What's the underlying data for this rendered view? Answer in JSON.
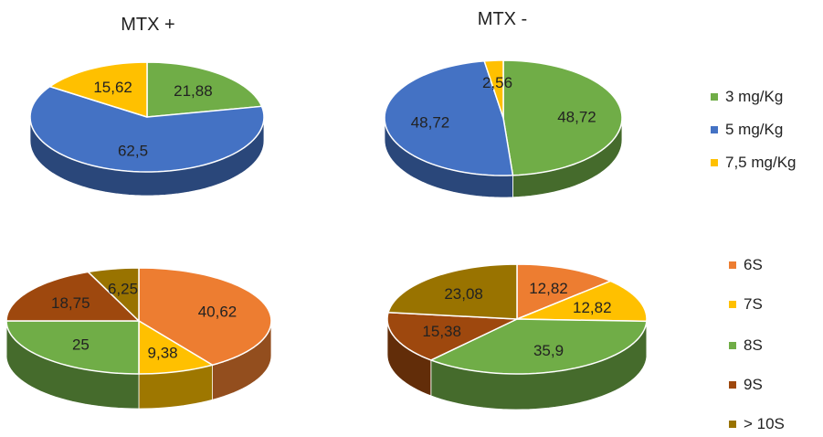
{
  "column_titles": [
    "MTX +",
    "MTX -"
  ],
  "legends": [
    {
      "entries": [
        {
          "label": "3 mg/Kg",
          "color": "#70ad47"
        },
        {
          "label": "5 mg/Kg",
          "color": "#4472c4"
        },
        {
          "label": "7,5 mg/Kg",
          "color": "#ffc000"
        }
      ]
    },
    {
      "entries": [
        {
          "label": "6S",
          "color": "#ed7d31"
        },
        {
          "label": "7S",
          "color": "#ffc000"
        },
        {
          "label": "8S",
          "color": "#70ad47"
        },
        {
          "label": "9S",
          "color": "#9e480e"
        },
        {
          "label": "> 10S",
          "color": "#997300"
        }
      ]
    }
  ],
  "chart_data": [
    {
      "type": "pie",
      "title": "MTX +",
      "categories": [
        "3 mg/Kg",
        "5 mg/Kg",
        "7,5 mg/Kg"
      ],
      "values": [
        21.88,
        62.5,
        15.62
      ],
      "labels": [
        "21,88",
        "62,5",
        "15,62"
      ],
      "colors": [
        "#70ad47",
        "#4472c4",
        "#ffc000"
      ]
    },
    {
      "type": "pie",
      "title": "MTX -",
      "categories": [
        "3 mg/Kg",
        "5 mg/Kg",
        "7,5 mg/Kg"
      ],
      "values": [
        48.72,
        48.72,
        2.56
      ],
      "labels": [
        "48,72",
        "48,72",
        "2,56"
      ],
      "colors": [
        "#70ad47",
        "#4472c4",
        "#ffc000"
      ]
    },
    {
      "type": "pie",
      "categories": [
        "6S",
        "7S",
        "8S",
        "9S",
        "> 10S"
      ],
      "values": [
        40.62,
        9.38,
        25,
        18.75,
        6.25
      ],
      "labels": [
        "40,62",
        "9,38",
        "25",
        "18,75",
        "6,25"
      ],
      "colors": [
        "#ed7d31",
        "#ffc000",
        "#70ad47",
        "#9e480e",
        "#997300"
      ]
    },
    {
      "type": "pie",
      "categories": [
        "6S",
        "7S",
        "8S",
        "9S",
        "> 10S"
      ],
      "values": [
        12.82,
        12.82,
        35.9,
        15.38,
        23.08
      ],
      "labels": [
        "12,82",
        "12,82",
        "35,9",
        "15,38",
        "23,08"
      ],
      "colors": [
        "#ed7d31",
        "#ffc000",
        "#70ad47",
        "#9e480e",
        "#997300"
      ]
    }
  ]
}
